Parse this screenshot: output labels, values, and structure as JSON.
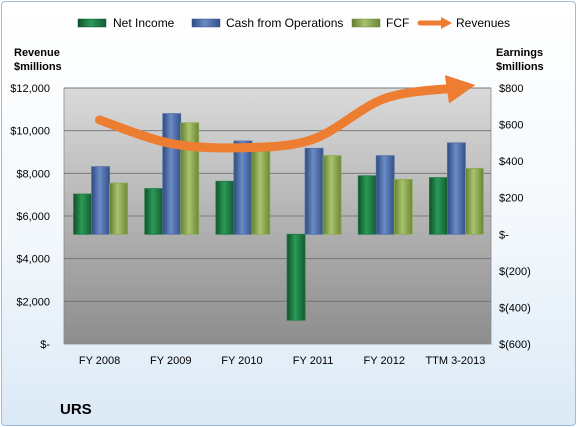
{
  "colors": {
    "net_income": "#1e7a43",
    "cash_ops": "#4f6fa8",
    "fcf": "#8caa4e",
    "revenues": "#ed7d31"
  },
  "chart_data": {
    "type": "bar",
    "title": "URS",
    "categories": [
      "FY 2008",
      "FY 2009",
      "FY 2010",
      "FY 2011",
      "FY 2012",
      "TTM 3-2013"
    ],
    "series": [
      {
        "name": "Net Income",
        "axis": "right",
        "values": [
          220,
          250,
          290,
          -470,
          320,
          310
        ]
      },
      {
        "name": "Cash from Operations",
        "axis": "right",
        "values": [
          370,
          660,
          510,
          470,
          430,
          500
        ]
      },
      {
        "name": "FCF",
        "axis": "right",
        "values": [
          280,
          610,
          470,
          430,
          300,
          360
        ]
      },
      {
        "name": "Revenues",
        "axis": "left",
        "type": "line",
        "values": [
          10500,
          9400,
          9200,
          9600,
          11500,
          12000
        ]
      }
    ],
    "left_axis": {
      "label_line1": "Revenue",
      "label_line2": "$millions",
      "ylim": [
        0,
        12000
      ],
      "ticks": [
        "$-",
        "$2,000",
        "$4,000",
        "$6,000",
        "$8,000",
        "$10,000",
        "$12,000"
      ]
    },
    "right_axis": {
      "label_line1": "Earnings",
      "label_line2": "$millions",
      "ylim": [
        -600,
        800
      ],
      "ticks": [
        "$(600)",
        "$(400)",
        "$(200)",
        "$-",
        "$200",
        "$400",
        "$600",
        "$800"
      ]
    },
    "legend_position": "top",
    "grid": true
  }
}
